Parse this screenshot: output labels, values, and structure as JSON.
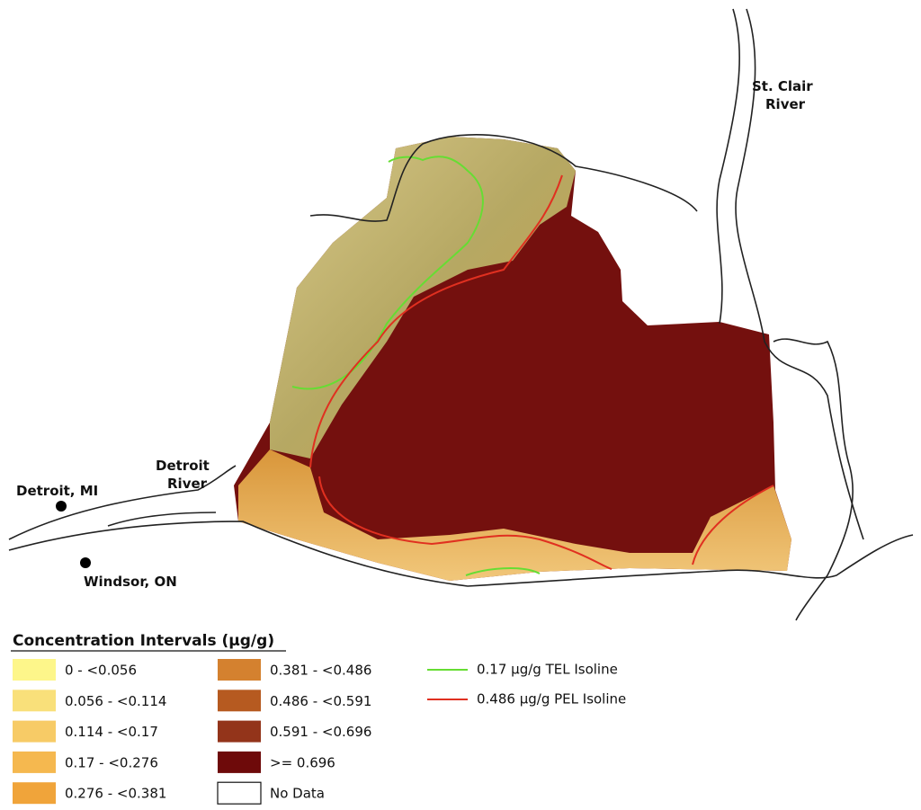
{
  "map": {
    "places": {
      "st_clair_river": [
        "St. Clair",
        "River"
      ],
      "detroit_river": [
        "Detroit",
        "River"
      ],
      "detroit": "Detroit, MI",
      "windsor": "Windsor, ON"
    },
    "legend": {
      "title": "Concentration Intervals (µg/g)",
      "intervals": [
        {
          "label": "0 - <0.056",
          "color": "#fdf68a"
        },
        {
          "label": "0.056 - <0.114",
          "color": "#f9e07a"
        },
        {
          "label": "0.114 - <0.17",
          "color": "#f7cb66"
        },
        {
          "label": "0.17 - <0.276",
          "color": "#f5b84f"
        },
        {
          "label": "0.276 - <0.381",
          "color": "#f0a43a"
        },
        {
          "label": "0.381 - <0.486",
          "color": "#d4812f"
        },
        {
          "label": "0.486 - <0.591",
          "color": "#b65a20"
        },
        {
          "label": "0.591 - <0.696",
          "color": "#93341a"
        },
        {
          "label": ">= 0.696",
          "color": "#6e0a0a"
        },
        {
          "label": "No Data",
          "color": "#ffffff"
        }
      ],
      "isolines": [
        {
          "label": "0.17 µg/g TEL Isoline",
          "color": "#66dd33"
        },
        {
          "label": "0.486 µg/g PEL Isoline",
          "color": "#e03020"
        }
      ]
    }
  }
}
